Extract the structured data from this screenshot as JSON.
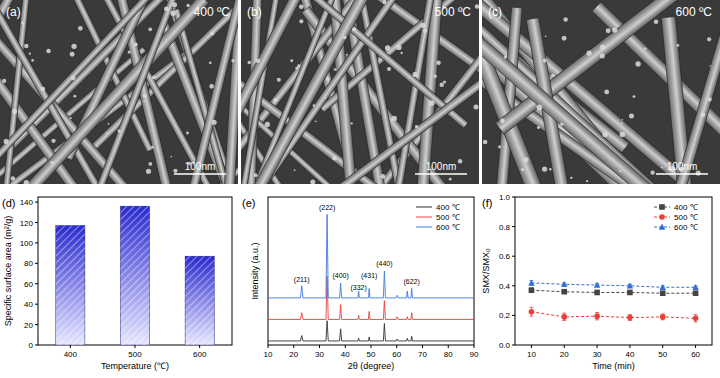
{
  "images": [
    {
      "title": "(a)",
      "caption": "400 ºC",
      "scale_bar": "100nm"
    },
    {
      "title": "(b)",
      "caption": "500 ºC",
      "scale_bar": "100nm"
    },
    {
      "title": "(c)",
      "caption": "600 ºC",
      "scale_bar": "100nm"
    }
  ],
  "chart_data": [
    {
      "title": "(d)",
      "type": "bar",
      "x_label": "Temperature (℃)",
      "y_label": "Specific surface area (m²/g)",
      "categories": [
        "400",
        "500",
        "600"
      ],
      "values": [
        117,
        136,
        87
      ],
      "color": "#2a2ad0",
      "ylim": [
        0,
        145
      ],
      "yticks": [
        0,
        20,
        40,
        60,
        80,
        100,
        120,
        140
      ]
    },
    {
      "title": "(e)",
      "type": "line",
      "x_label": "2θ (degree)",
      "y_label": "Intensity (a.u.)",
      "xlim": [
        10,
        90
      ],
      "xticks": [
        10,
        20,
        30,
        40,
        50,
        60,
        70,
        80,
        90
      ],
      "ylim": [
        0,
        110
      ],
      "tick_labels": "x",
      "legend": "upper right",
      "x": [
        10,
        22.6,
        23.1,
        23.6,
        32.5,
        32.95,
        33.4,
        37.8,
        38.2,
        38.6,
        44.9,
        45.2,
        45.5,
        49.0,
        49.3,
        49.6,
        54.8,
        55.2,
        55.6,
        59.8,
        60.2,
        60.6,
        63.8,
        64.1,
        64.4,
        65.5,
        65.8,
        66.1,
        90
      ],
      "series": [
        {
          "name": "400 ℃",
          "color": "#333333",
          "line_style": "solid",
          "values": [
            3,
            3,
            7,
            3,
            3,
            18,
            3,
            3,
            12,
            3,
            3,
            5,
            3,
            3,
            6,
            3,
            3,
            16,
            3,
            3,
            4.5,
            3,
            3,
            5,
            3,
            3,
            6.5,
            3,
            3
          ]
        },
        {
          "name": "500 ℃",
          "color": "#e8413a",
          "line_style": "solid",
          "values": [
            19,
            19,
            24,
            19,
            19,
            51,
            19,
            19,
            30,
            19,
            19,
            22,
            19,
            19,
            25,
            19,
            19,
            33,
            19,
            19,
            21,
            19,
            19,
            21,
            19,
            19,
            24,
            19,
            19
          ]
        },
        {
          "name": "600 ℃",
          "color": "#3d7be0",
          "line_style": "solid",
          "values": [
            35,
            35,
            44,
            35,
            35,
            97,
            35,
            35,
            46,
            35,
            35,
            40,
            35,
            35,
            42,
            35,
            35,
            55,
            35,
            35,
            37,
            35,
            35,
            40,
            35,
            35,
            42,
            35,
            35
          ]
        }
      ],
      "annotations": [
        {
          "text": "(211)",
          "x": 23.1,
          "y": 47
        },
        {
          "text": "(222)",
          "x": 32.95,
          "y": 100
        },
        {
          "text": "(400)",
          "x": 38.2,
          "y": 50
        },
        {
          "text": "(332)",
          "x": 45.2,
          "y": 41
        },
        {
          "text": "(431)",
          "x": 49.3,
          "y": 50
        },
        {
          "text": "(440)",
          "x": 55.2,
          "y": 59
        },
        {
          "text": "(622)",
          "x": 65.8,
          "y": 45
        }
      ]
    },
    {
      "title": "(f)",
      "type": "line",
      "x_label": "Time (min)",
      "y_label": "SMX/SMX₀",
      "x": [
        10,
        20,
        30,
        40,
        50,
        60
      ],
      "xlim": [
        5,
        65
      ],
      "xticks": [
        10,
        20,
        30,
        40,
        50,
        60
      ],
      "ylim": [
        0,
        1
      ],
      "yticks": [
        {
          "value": 0,
          "label": "0.0"
        },
        0.2,
        0.4,
        0.6,
        0.8,
        {
          "value": 1,
          "label": "1.0"
        }
      ],
      "legend": "upper right",
      "series": [
        {
          "name": "400 ℃",
          "color": "#444444",
          "marker": "square",
          "line_style": "dashed",
          "values": [
            0.37,
            0.36,
            0.355,
            0.355,
            0.35,
            0.35
          ],
          "errors": [
            0.015,
            0.01,
            0.01,
            0.01,
            0.01,
            0.01
          ]
        },
        {
          "name": "500 ℃",
          "color": "#e8413a",
          "marker": "circle",
          "line_style": "dashed",
          "values": [
            0.225,
            0.19,
            0.195,
            0.185,
            0.19,
            0.18
          ],
          "errors": [
            0.03,
            0.025,
            0.025,
            0.02,
            0.02,
            0.025
          ]
        },
        {
          "name": "600 ℃",
          "color": "#2f6fd6",
          "marker": "triangle",
          "line_style": "dashed",
          "values": [
            0.42,
            0.41,
            0.405,
            0.4,
            0.39,
            0.39
          ],
          "errors": [
            0.015,
            0.01,
            0.01,
            0.01,
            0.01,
            0.01
          ]
        }
      ]
    }
  ]
}
